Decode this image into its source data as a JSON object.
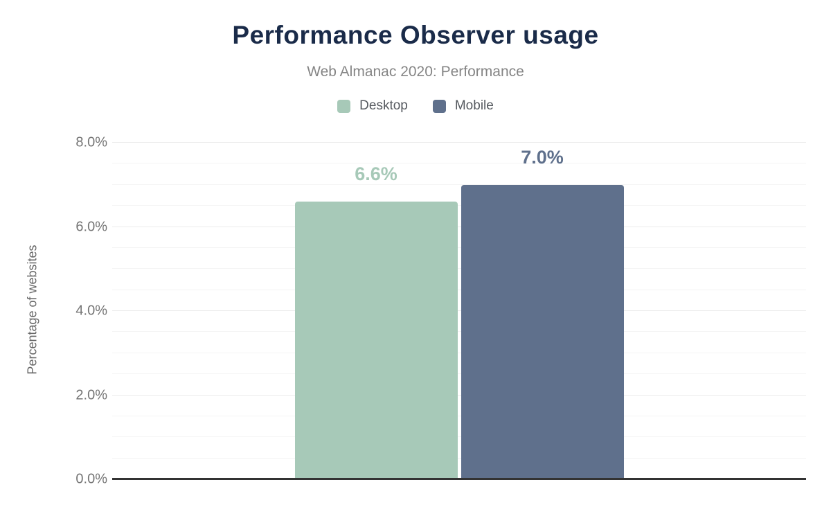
{
  "chart_data": {
    "type": "bar",
    "title": "Performance Observer usage",
    "subtitle": "Web Almanac 2020: Performance",
    "ylabel": "Percentage of websites",
    "categories": [
      "Desktop",
      "Mobile"
    ],
    "series": [
      {
        "name": "Desktop",
        "value": 6.6,
        "value_label": "6.6%",
        "color": "#a7c9b8"
      },
      {
        "name": "Mobile",
        "value": 7.0,
        "value_label": "7.0%",
        "color": "#5f708c"
      }
    ],
    "ylim": [
      0,
      8
    ],
    "y_major_step": 2,
    "y_minor_step": 0.5,
    "y_tick_labels": [
      "0.0%",
      "2.0%",
      "4.0%",
      "6.0%",
      "8.0%"
    ],
    "grid": true,
    "legend_position": "top",
    "colors": {
      "title": "#1a2b49",
      "subtitle": "#858585",
      "tick_label": "#757575",
      "axis_line": "#333333",
      "gridline_minor": "#f4f4f4",
      "gridline_major": "#ebebeb"
    }
  }
}
